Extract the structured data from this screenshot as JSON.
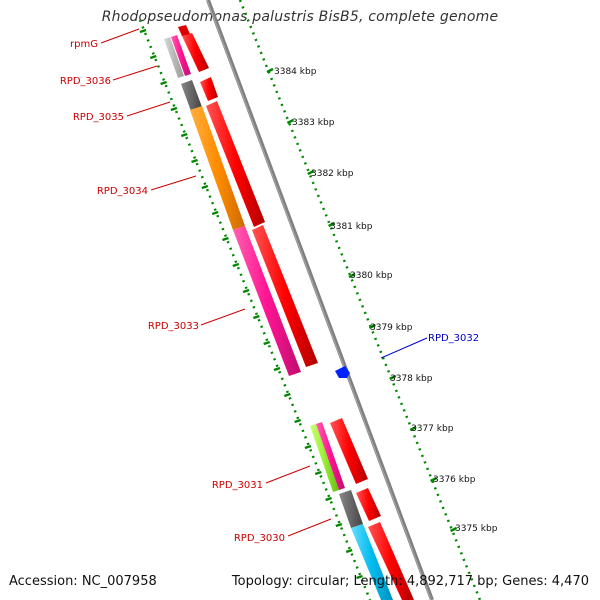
{
  "title": "Rhodopseudomonas palustris BisB5, complete genome",
  "accession": "Accession: NC_007958",
  "genome_stats": "Topology: circular; Length: 4,892,717 bp; Genes: 4,470",
  "scale_labels": [
    "3384 kbp",
    "3383 kbp",
    "3382 kbp",
    "3381 kbp",
    "3380 kbp",
    "3379 kbp",
    "3378 kbp",
    "3377 kbp",
    "3376 kbp",
    "3375 kbp"
  ],
  "genes": [
    {
      "name": "rpmG",
      "color": "#cc0000"
    },
    {
      "name": "RPD_3036",
      "color": "#cc0000"
    },
    {
      "name": "RPD_3035",
      "color": "#cc0000"
    },
    {
      "name": "RPD_3034",
      "color": "#cc0000"
    },
    {
      "name": "RPD_3033",
      "color": "#cc0000"
    },
    {
      "name": "RPD_3032",
      "color": "#0000cc"
    },
    {
      "name": "RPD_3031",
      "color": "#cc0000"
    },
    {
      "name": "RPD_3030",
      "color": "#cc0000"
    }
  ],
  "colors": {
    "forward_strand": "#ff0000",
    "reverse_strand": "#0000ff",
    "backbone": "#808080",
    "scale_dots": "#008800",
    "cog_orange": "#ff8c00",
    "cog_pink": "#ff1493",
    "cog_gray": "#666666",
    "cog_light_gray": "#b8b8b8",
    "cog_lime": "#99ee33",
    "cog_cyan": "#00bbee"
  }
}
